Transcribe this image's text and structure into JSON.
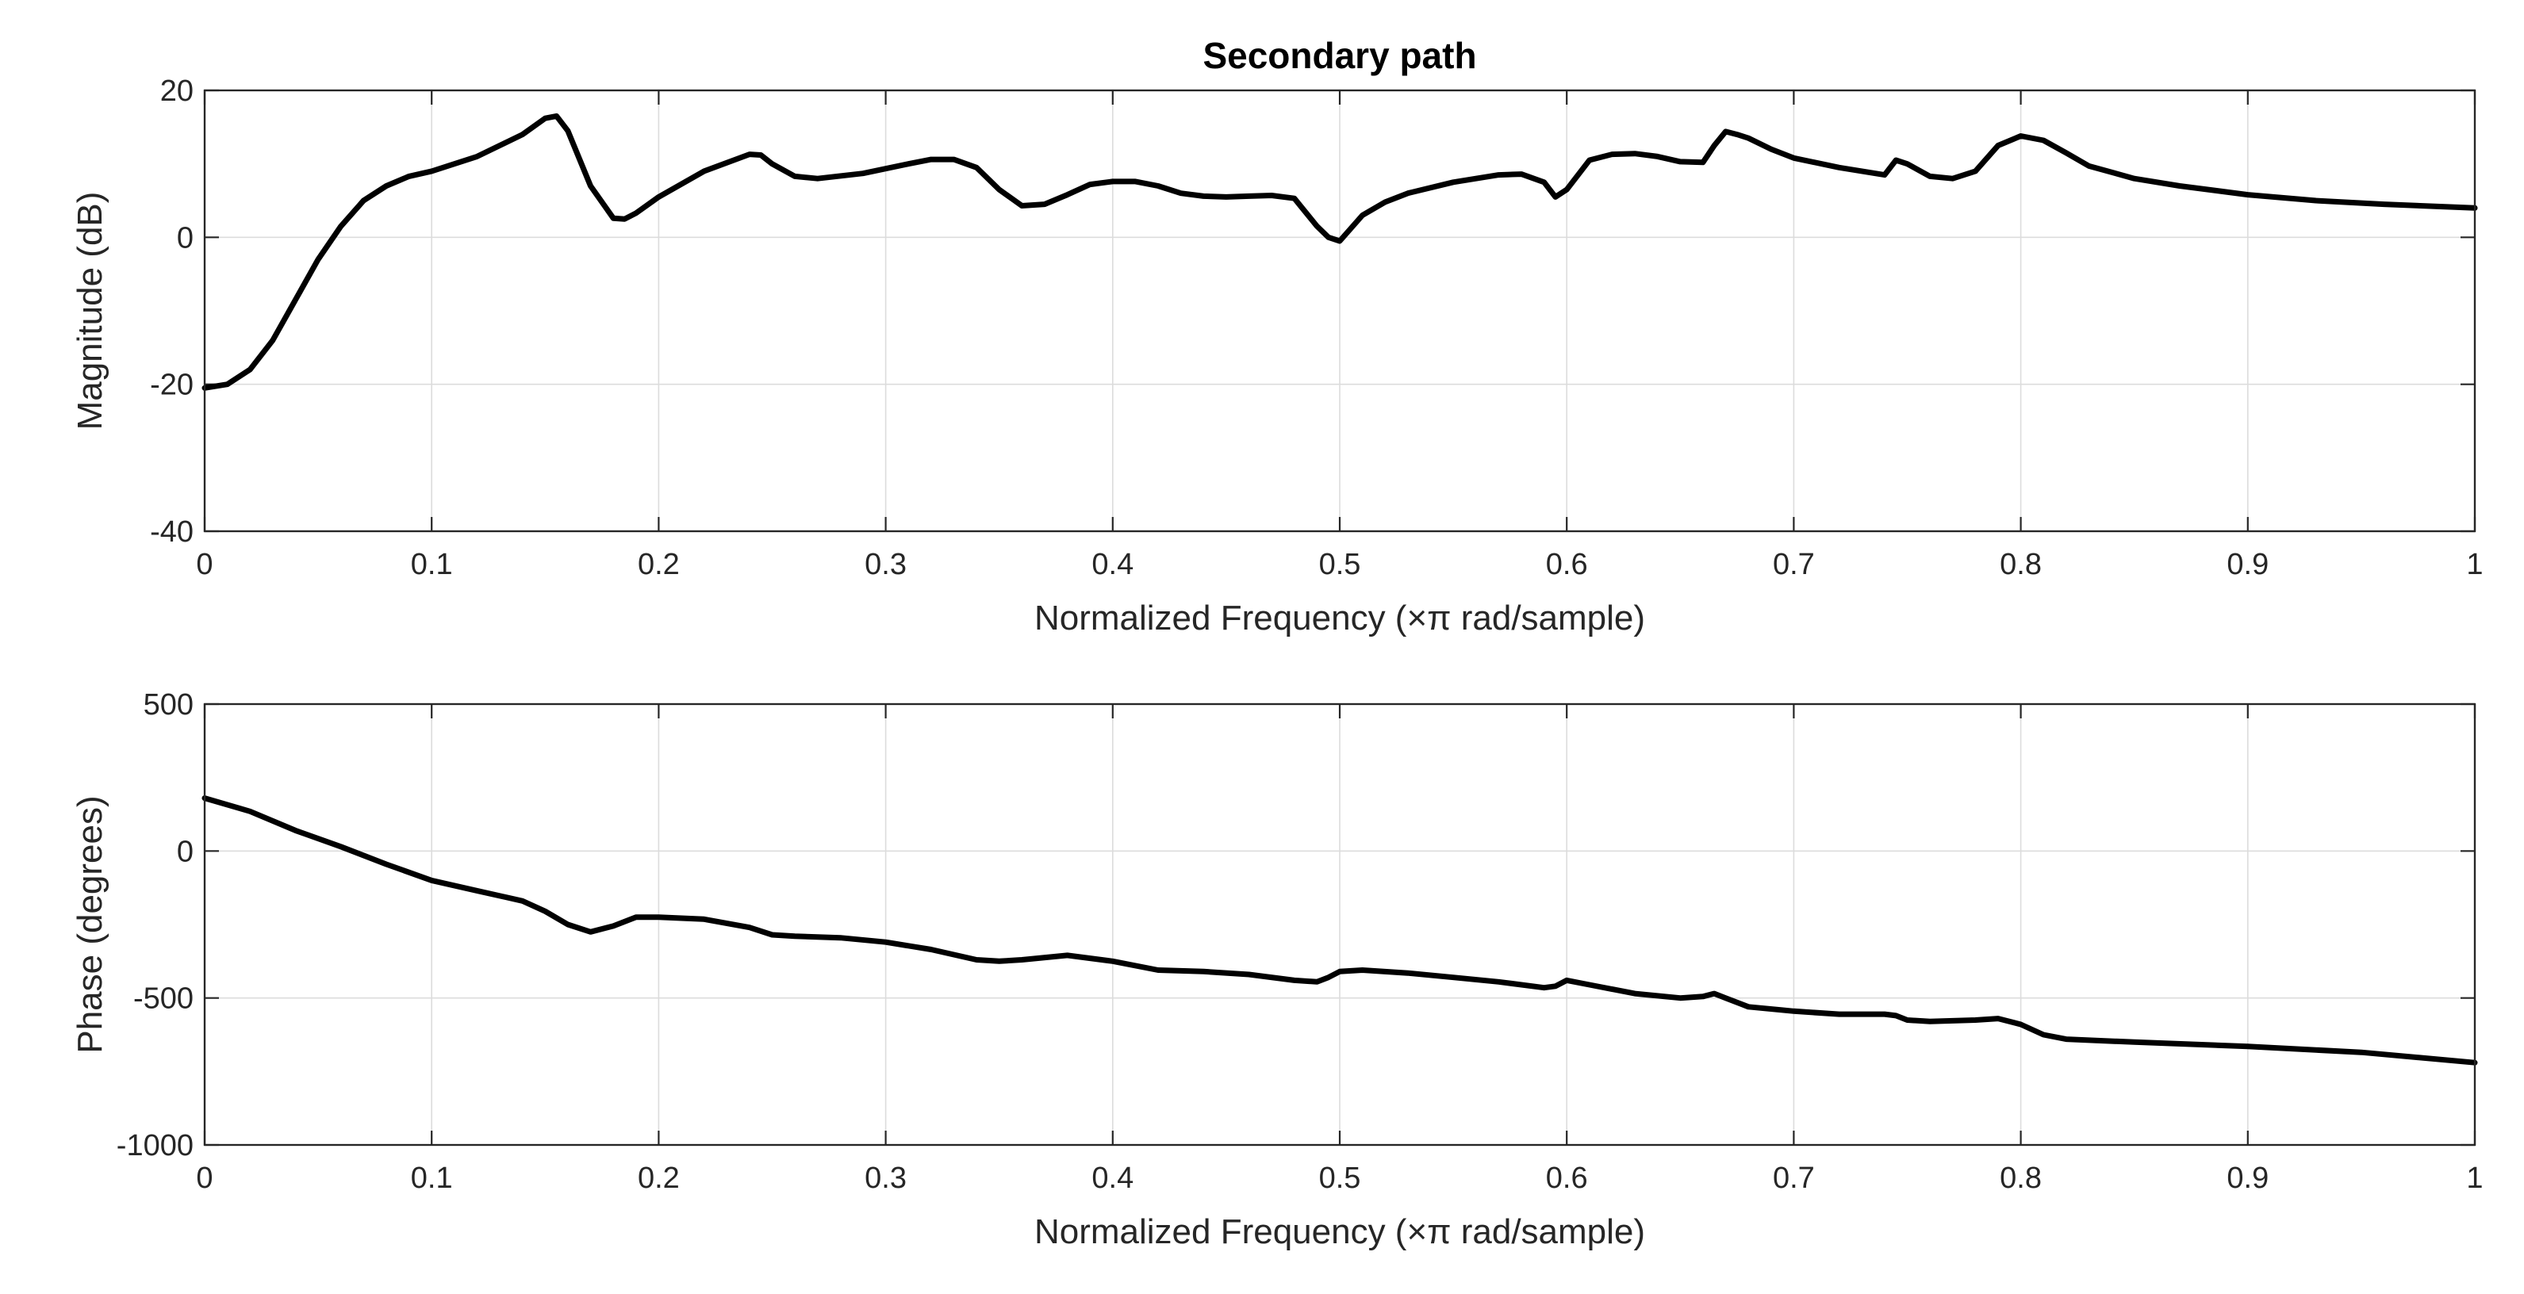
{
  "chart_data": [
    {
      "type": "line",
      "title": "Secondary path",
      "xlabel": "Normalized Frequency  (×π rad/sample)",
      "ylabel": "Magnitude (dB)",
      "xlim": [
        0,
        1
      ],
      "ylim": [
        -40,
        20
      ],
      "grid": true,
      "x_ticks": [
        0,
        0.1,
        0.2,
        0.3,
        0.4,
        0.5,
        0.6,
        0.7,
        0.8,
        0.9,
        1
      ],
      "x_tick_labels": [
        "0",
        "0.1",
        "0.2",
        "0.3",
        "0.4",
        "0.5",
        "0.6",
        "0.7",
        "0.8",
        "0.9",
        "1"
      ],
      "y_ticks": [
        -40,
        -20,
        0,
        20
      ],
      "y_tick_labels": [
        "-40",
        "-20",
        "0",
        "20"
      ],
      "series": [
        {
          "color": "#000000",
          "x": [
            0,
            0.01,
            0.02,
            0.03,
            0.04,
            0.05,
            0.06,
            0.07,
            0.08,
            0.09,
            0.1,
            0.12,
            0.14,
            0.15,
            0.155,
            0.16,
            0.17,
            0.18,
            0.185,
            0.19,
            0.2,
            0.22,
            0.24,
            0.245,
            0.25,
            0.26,
            0.27,
            0.29,
            0.31,
            0.32,
            0.33,
            0.34,
            0.35,
            0.36,
            0.37,
            0.38,
            0.39,
            0.4,
            0.41,
            0.42,
            0.43,
            0.44,
            0.45,
            0.46,
            0.47,
            0.48,
            0.49,
            0.495,
            0.5,
            0.51,
            0.52,
            0.53,
            0.55,
            0.57,
            0.58,
            0.59,
            0.595,
            0.6,
            0.61,
            0.62,
            0.63,
            0.64,
            0.65,
            0.66,
            0.665,
            0.67,
            0.675,
            0.68,
            0.69,
            0.7,
            0.72,
            0.74,
            0.745,
            0.75,
            0.76,
            0.77,
            0.78,
            0.79,
            0.8,
            0.81,
            0.82,
            0.83,
            0.85,
            0.87,
            0.9,
            0.93,
            0.96,
            1.0
          ],
          "y": [
            -20.5,
            -20,
            -18,
            -14,
            -8.5,
            -3,
            1.5,
            5,
            7,
            8.3,
            9,
            11,
            14,
            16.2,
            16.5,
            14.5,
            7,
            2.6,
            2.5,
            3.3,
            5.5,
            9,
            11.3,
            11.2,
            10,
            8.3,
            8,
            8.7,
            10,
            10.6,
            10.6,
            9.5,
            6.5,
            4.3,
            4.5,
            5.8,
            7.2,
            7.6,
            7.6,
            7,
            6,
            5.6,
            5.5,
            5.6,
            5.7,
            5.3,
            1.5,
            0,
            -0.5,
            3,
            4.8,
            6,
            7.5,
            8.5,
            8.6,
            7.5,
            5.5,
            6.5,
            10.5,
            11.3,
            11.4,
            11,
            10.3,
            10.2,
            12.5,
            14.4,
            14,
            13.5,
            12,
            10.8,
            9.5,
            8.5,
            10.5,
            10,
            8.3,
            8,
            9,
            12.5,
            13.8,
            13.2,
            11.5,
            9.7,
            8,
            7,
            5.8,
            5,
            4.5,
            4
          ]
        }
      ]
    },
    {
      "type": "line",
      "xlabel": "Normalized Frequency  (×π rad/sample)",
      "ylabel": "Phase (degrees)",
      "xlim": [
        0,
        1
      ],
      "ylim": [
        -1000,
        500
      ],
      "grid": true,
      "x_ticks": [
        0,
        0.1,
        0.2,
        0.3,
        0.4,
        0.5,
        0.6,
        0.7,
        0.8,
        0.9,
        1
      ],
      "x_tick_labels": [
        "0",
        "0.1",
        "0.2",
        "0.3",
        "0.4",
        "0.5",
        "0.6",
        "0.7",
        "0.8",
        "0.9",
        "1"
      ],
      "y_ticks": [
        -1000,
        -500,
        0,
        500
      ],
      "y_tick_labels": [
        "-1000",
        "-500",
        "0",
        "500"
      ],
      "series": [
        {
          "color": "#000000",
          "x": [
            0,
            0.02,
            0.04,
            0.06,
            0.08,
            0.1,
            0.12,
            0.14,
            0.15,
            0.16,
            0.17,
            0.18,
            0.19,
            0.2,
            0.22,
            0.24,
            0.25,
            0.26,
            0.28,
            0.3,
            0.32,
            0.34,
            0.35,
            0.36,
            0.38,
            0.4,
            0.42,
            0.44,
            0.46,
            0.48,
            0.49,
            0.495,
            0.5,
            0.51,
            0.53,
            0.55,
            0.57,
            0.59,
            0.595,
            0.6,
            0.61,
            0.63,
            0.65,
            0.66,
            0.665,
            0.67,
            0.68,
            0.7,
            0.72,
            0.74,
            0.745,
            0.75,
            0.76,
            0.78,
            0.79,
            0.8,
            0.81,
            0.82,
            0.85,
            0.9,
            0.95,
            1.0
          ],
          "y": [
            180,
            135,
            70,
            15,
            -45,
            -100,
            -135,
            -170,
            -205,
            -250,
            -275,
            -255,
            -225,
            -225,
            -232,
            -260,
            -285,
            -290,
            -295,
            -310,
            -335,
            -370,
            -375,
            -370,
            -355,
            -375,
            -405,
            -410,
            -420,
            -440,
            -445,
            -430,
            -410,
            -405,
            -415,
            -430,
            -445,
            -465,
            -460,
            -440,
            -455,
            -485,
            -500,
            -495,
            -485,
            -500,
            -530,
            -545,
            -555,
            -555,
            -560,
            -575,
            -580,
            -575,
            -570,
            -590,
            -625,
            -640,
            -650,
            -665,
            -685,
            -720
          ]
        }
      ]
    }
  ]
}
